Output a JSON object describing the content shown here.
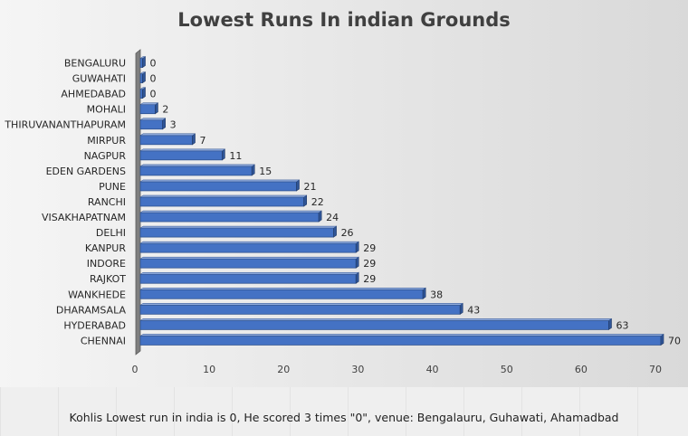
{
  "chart_data": {
    "type": "bar",
    "orientation": "horizontal",
    "title": "Lowest Runs In indian Grounds",
    "categories": [
      "BENGALURU",
      "GUWAHATI",
      "AHMEDABAD",
      "MOHALI",
      "THIRUVANANTHAPURAM",
      "MIRPUR",
      "NAGPUR",
      "EDEN GARDENS",
      "PUNE",
      "RANCHI",
      "VISAKHAPATNAM",
      "DELHI",
      "KANPUR",
      "INDORE",
      "RAJKOT",
      "WANKHEDE",
      "DHARAMSALA",
      "HYDERABAD",
      "CHENNAI"
    ],
    "values": [
      0,
      0,
      0,
      2,
      3,
      7,
      11,
      15,
      21,
      22,
      24,
      26,
      29,
      29,
      29,
      38,
      43,
      63,
      70
    ],
    "xlim": [
      0,
      70
    ],
    "xticks": [
      0,
      10,
      20,
      30,
      40,
      50,
      60,
      70
    ],
    "xlabel": "",
    "ylabel": "",
    "grid": false,
    "data_labels": true,
    "bar_color": "#4472c4"
  },
  "footer_note": "Kohlis Lowest run in india is 0, He scored 3 times \"0\", venue: Bengalauru, Guhawati, Ahamadbad"
}
